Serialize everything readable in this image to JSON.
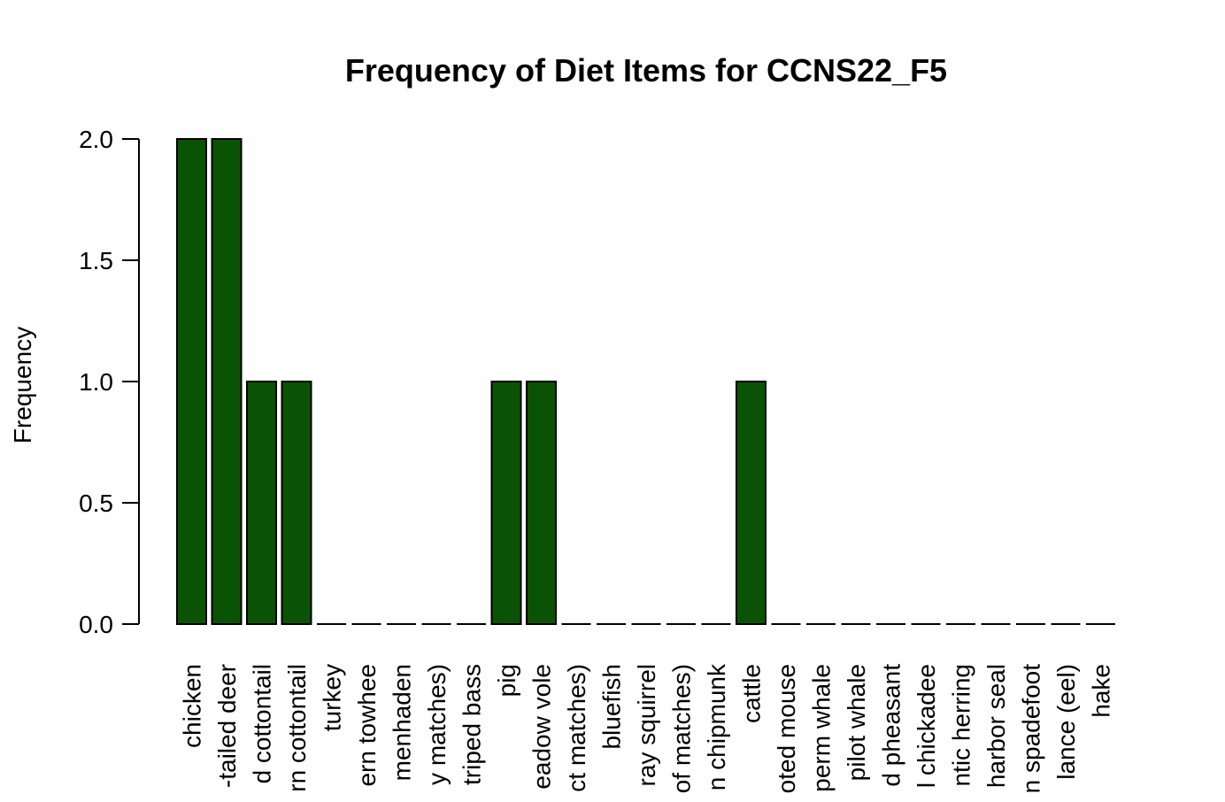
{
  "chart_data": {
    "type": "bar",
    "title": "Frequency of Diet Items for CCNS22_F5",
    "xlabel": "",
    "ylabel": "Frequency",
    "ylim": [
      0,
      2
    ],
    "yticks": [
      "0.0",
      "0.5",
      "1.0",
      "1.5",
      "2.0"
    ],
    "bar_color": "#0b5304",
    "grid": false,
    "categories": [
      "chicken",
      "-tailed deer",
      "d cottontail",
      "rn cottontail",
      "turkey",
      "ern towhee",
      "menhaden",
      "y matches)",
      "triped bass",
      "pig",
      "eadow vole",
      "ct matches)",
      "bluefish",
      "ray squirrel",
      "of matches)",
      "n chipmunk",
      "cattle",
      "oted mouse",
      "perm whale",
      "pilot whale",
      "d pheasant",
      "l chickadee",
      "ntic herring",
      "harbor seal",
      "n spadefoot",
      "lance (eel)",
      "hake"
    ],
    "values": [
      2,
      2,
      1,
      1,
      0,
      0,
      0,
      0,
      0,
      1,
      1,
      0,
      0,
      0,
      0,
      0,
      1,
      0,
      0,
      0,
      0,
      0,
      0,
      0,
      0,
      0,
      0
    ]
  }
}
